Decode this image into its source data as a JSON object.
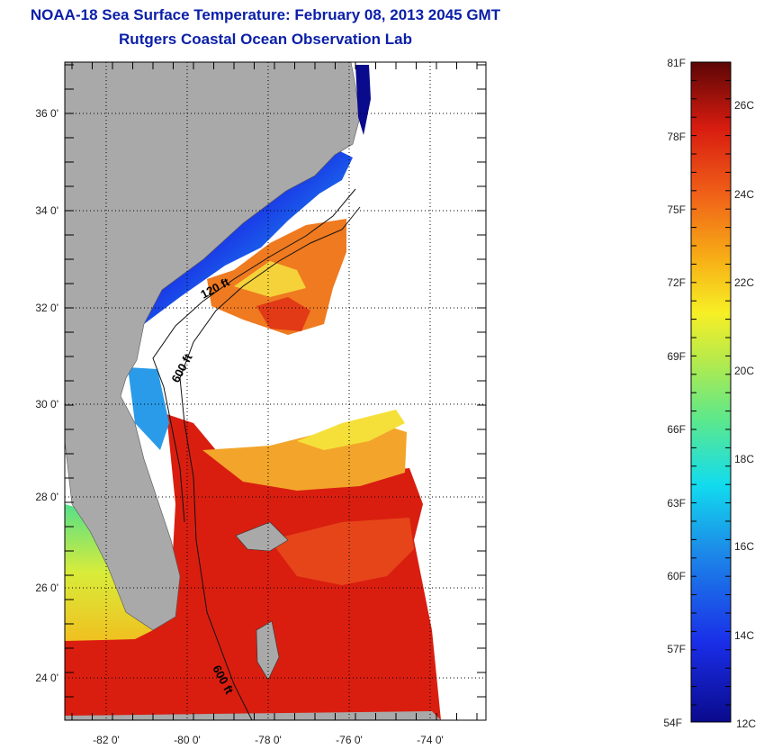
{
  "header": {
    "title": "NOAA-18 Sea Surface Temperature:  February 08, 2013 2045 GMT",
    "subtitle": "Rutgers Coastal Ocean Observation Lab"
  },
  "map": {
    "lat_labels": [
      "36 0'",
      "34 0'",
      "32 0'",
      "30 0'",
      "28 0'",
      "26 0'",
      "24 0'"
    ],
    "lon_labels": [
      "-82 0'",
      "-80 0'",
      "-78 0'",
      "-76 0'",
      "-74 0'"
    ],
    "contours": [
      "120 ft",
      "600 ft",
      "600 ft"
    ]
  },
  "colorbar": {
    "fahrenheit": [
      "81F",
      "78F",
      "75F",
      "72F",
      "69F",
      "66F",
      "63F",
      "60F",
      "57F",
      "54F"
    ],
    "celsius": [
      "26C",
      "24C",
      "22C",
      "20C",
      "18C",
      "16C",
      "14C",
      "12C"
    ]
  },
  "colors": {
    "title": "#0a1fa8",
    "land": "#a9a9a9",
    "cloud": "#ffffff",
    "warm": "#d91e10",
    "cold": "#0a1fa8"
  }
}
